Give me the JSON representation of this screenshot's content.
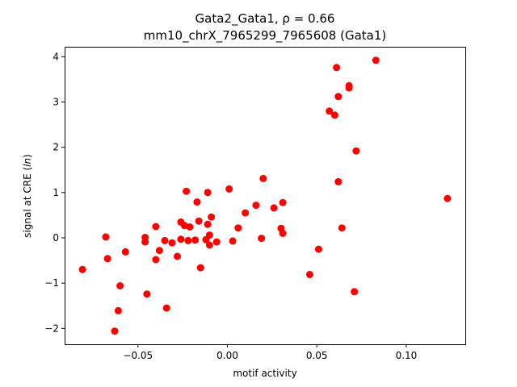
{
  "chart_data": {
    "type": "scatter",
    "title_line1": "Gata2_Gata1, ρ = 0.66",
    "title_line2": "mm10_chrX_7965299_7965608 (Gata1)",
    "xlabel": "motif activity",
    "ylabel": "signal at CRE (ln)",
    "xlim": [
      -0.091,
      0.133
    ],
    "ylim": [
      -2.35,
      4.22
    ],
    "xticks": [
      -0.05,
      0.0,
      0.05,
      0.1
    ],
    "xtick_labels": [
      "−0.05",
      "0.00",
      "0.05",
      "0.10"
    ],
    "yticks": [
      -2,
      -1,
      0,
      1,
      2,
      3,
      4
    ],
    "ytick_labels": [
      "−2",
      "−1",
      "0",
      "1",
      "2",
      "3",
      "4"
    ],
    "grid": false,
    "marker_color": "#ff0000",
    "points": [
      {
        "x": -0.081,
        "y": -0.7
      },
      {
        "x": -0.068,
        "y": 0.02
      },
      {
        "x": -0.067,
        "y": -0.46
      },
      {
        "x": -0.063,
        "y": -2.06
      },
      {
        "x": -0.061,
        "y": -1.61
      },
      {
        "x": -0.06,
        "y": -1.06
      },
      {
        "x": -0.057,
        "y": -0.31
      },
      {
        "x": -0.046,
        "y": -0.09
      },
      {
        "x": -0.046,
        "y": 0.01
      },
      {
        "x": -0.045,
        "y": -1.24
      },
      {
        "x": -0.04,
        "y": -0.48
      },
      {
        "x": -0.04,
        "y": 0.25
      },
      {
        "x": -0.038,
        "y": -0.28
      },
      {
        "x": -0.035,
        "y": -0.06
      },
      {
        "x": -0.034,
        "y": -1.55
      },
      {
        "x": -0.031,
        "y": -0.11
      },
      {
        "x": -0.028,
        "y": -0.41
      },
      {
        "x": -0.026,
        "y": 0.35
      },
      {
        "x": -0.026,
        "y": -0.03
      },
      {
        "x": -0.024,
        "y": 0.27
      },
      {
        "x": -0.023,
        "y": 1.03
      },
      {
        "x": -0.022,
        "y": -0.06
      },
      {
        "x": -0.021,
        "y": 0.24
      },
      {
        "x": -0.018,
        "y": -0.05
      },
      {
        "x": -0.017,
        "y": 0.79
      },
      {
        "x": -0.016,
        "y": 0.37
      },
      {
        "x": -0.015,
        "y": -0.66
      },
      {
        "x": -0.012,
        "y": -0.04
      },
      {
        "x": -0.011,
        "y": 1.0
      },
      {
        "x": -0.011,
        "y": 0.3
      },
      {
        "x": -0.01,
        "y": 0.06
      },
      {
        "x": -0.01,
        "y": -0.16
      },
      {
        "x": -0.009,
        "y": 0.46
      },
      {
        "x": -0.006,
        "y": -0.09
      },
      {
        "x": 0.001,
        "y": 1.08
      },
      {
        "x": 0.003,
        "y": -0.07
      },
      {
        "x": 0.006,
        "y": 0.22
      },
      {
        "x": 0.01,
        "y": 0.55
      },
      {
        "x": 0.016,
        "y": 0.72
      },
      {
        "x": 0.019,
        "y": -0.01
      },
      {
        "x": 0.02,
        "y": 1.31
      },
      {
        "x": 0.026,
        "y": 0.66
      },
      {
        "x": 0.03,
        "y": 0.21
      },
      {
        "x": 0.031,
        "y": 0.78
      },
      {
        "x": 0.031,
        "y": 0.1
      },
      {
        "x": 0.046,
        "y": -0.81
      },
      {
        "x": 0.051,
        "y": -0.25
      },
      {
        "x": 0.057,
        "y": 2.8
      },
      {
        "x": 0.06,
        "y": 2.71
      },
      {
        "x": 0.061,
        "y": 3.76
      },
      {
        "x": 0.062,
        "y": 3.12
      },
      {
        "x": 0.062,
        "y": 1.24
      },
      {
        "x": 0.064,
        "y": 0.22
      },
      {
        "x": 0.068,
        "y": 3.31
      },
      {
        "x": 0.068,
        "y": 3.36
      },
      {
        "x": 0.071,
        "y": -1.19
      },
      {
        "x": 0.072,
        "y": 1.92
      },
      {
        "x": 0.083,
        "y": 3.92
      },
      {
        "x": 0.123,
        "y": 0.87
      }
    ]
  }
}
